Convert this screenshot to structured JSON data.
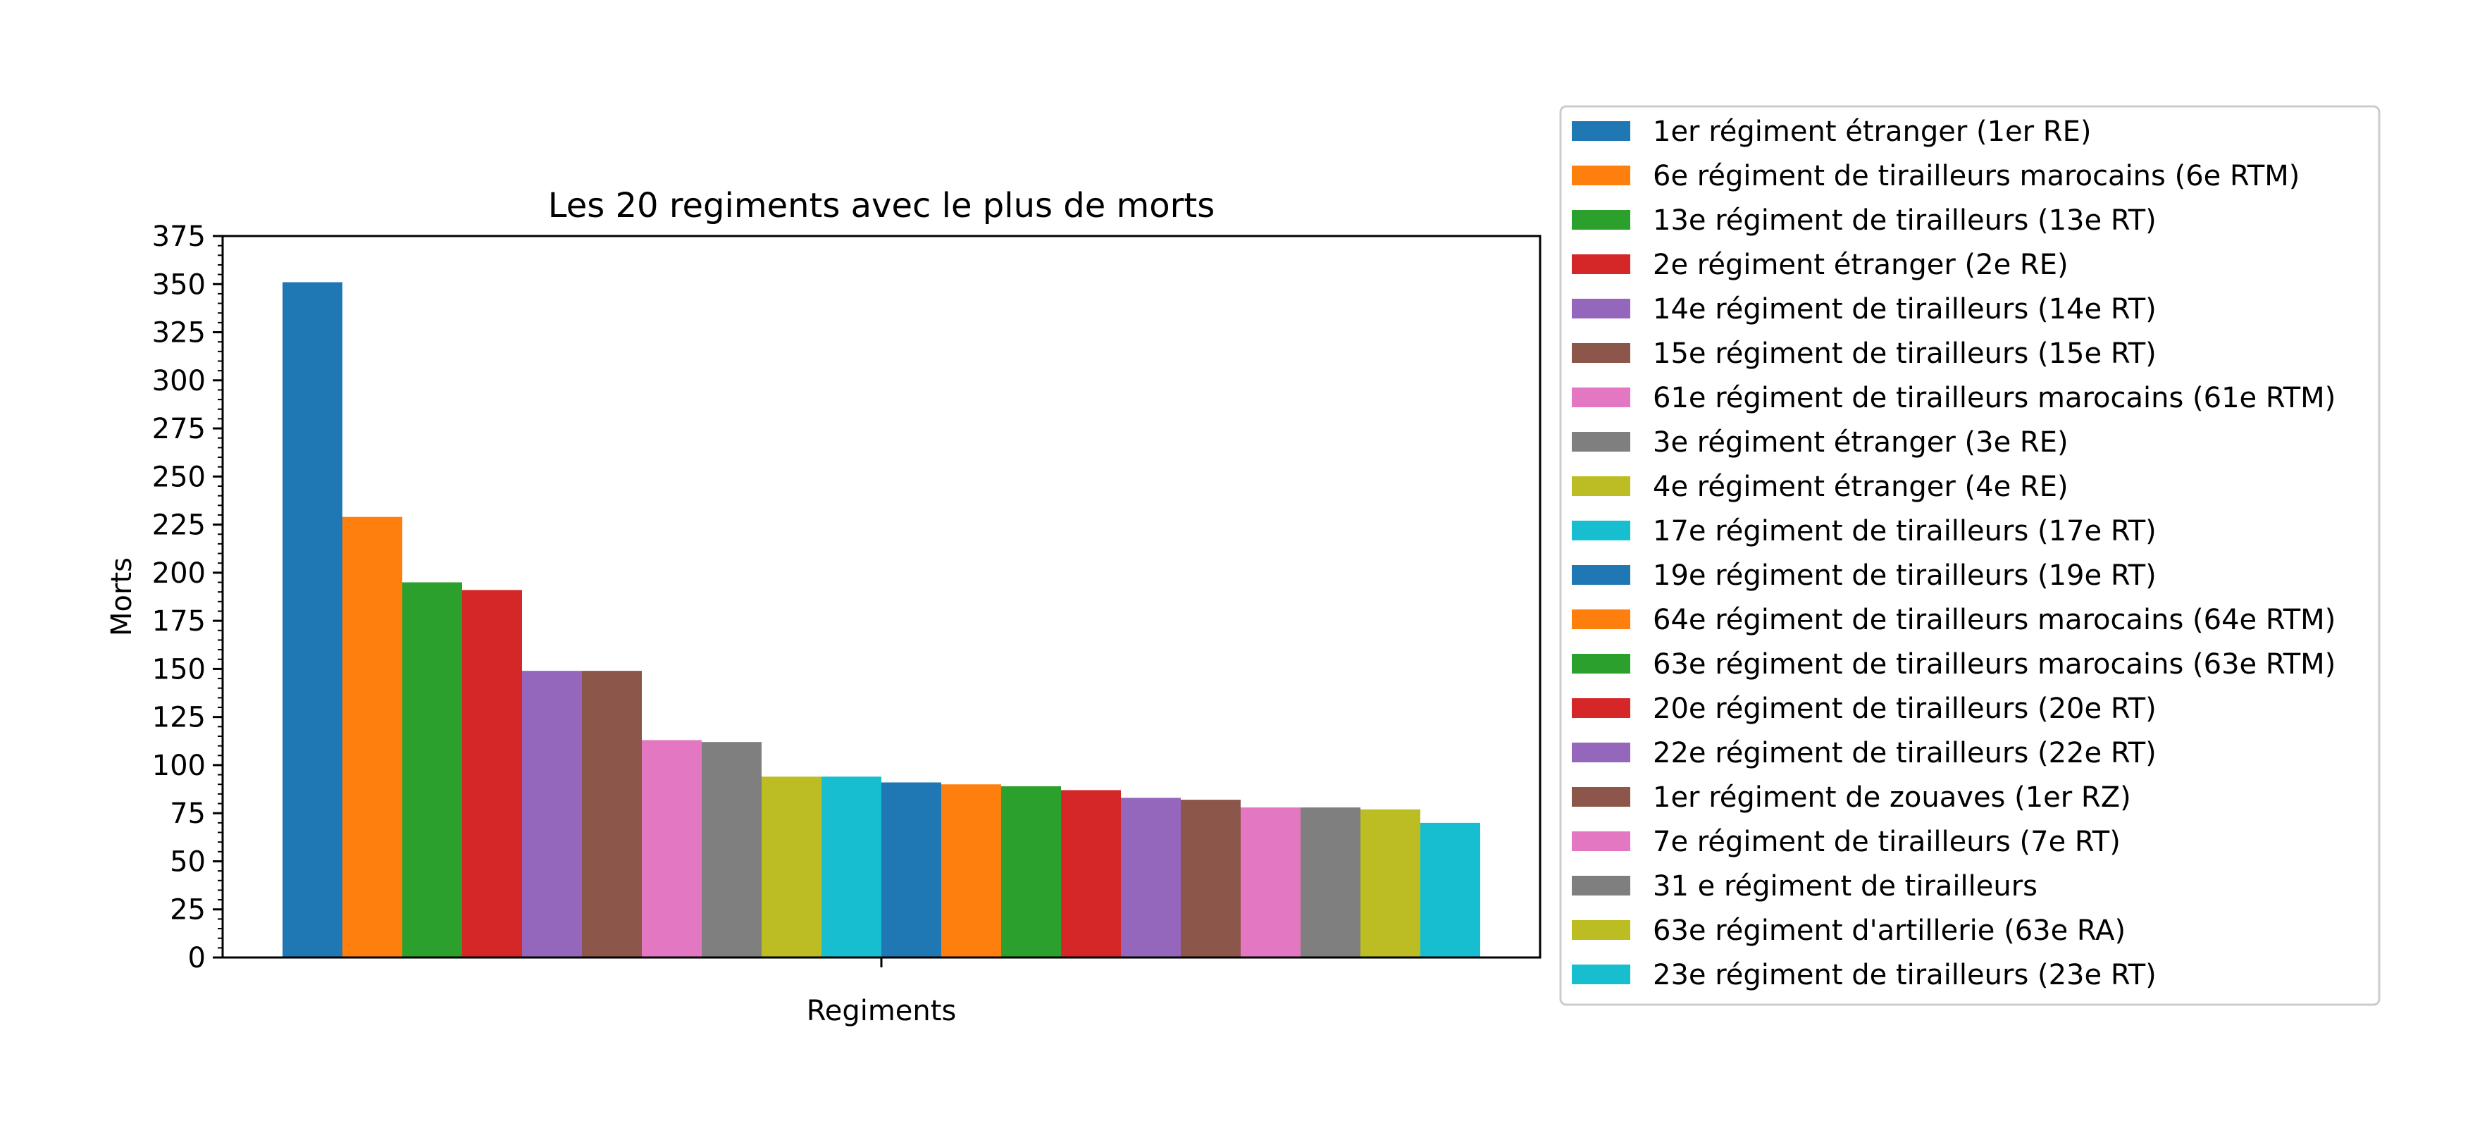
{
  "chart_data": {
    "type": "bar",
    "title": "Les 20 regiments avec le plus de morts",
    "xlabel": "Regiments",
    "ylabel": "Morts",
    "ylim": [
      0,
      375
    ],
    "yticks": [
      0,
      25,
      50,
      75,
      100,
      125,
      150,
      175,
      200,
      225,
      250,
      275,
      300,
      325,
      350,
      375
    ],
    "grid": false,
    "legend_position": "outside-right",
    "colors": [
      "#1f77b4",
      "#ff7f0e",
      "#2ca02c",
      "#d62728",
      "#9467bd",
      "#8c564b",
      "#e377c2",
      "#7f7f7f",
      "#bcbd22",
      "#17becf"
    ],
    "series": [
      {
        "name": "1er régiment étranger (1er RE)",
        "value": 351
      },
      {
        "name": "6e régiment de tirailleurs marocains (6e RTM)",
        "value": 229
      },
      {
        "name": "13e régiment de tirailleurs (13e RT)",
        "value": 195
      },
      {
        "name": "2e régiment étranger (2e RE)",
        "value": 191
      },
      {
        "name": "14e régiment de tirailleurs (14e RT)",
        "value": 149
      },
      {
        "name": "15e régiment de tirailleurs (15e RT)",
        "value": 149
      },
      {
        "name": "61e régiment de tirailleurs marocains (61e RTM)",
        "value": 113
      },
      {
        "name": "3e régiment étranger (3e RE)",
        "value": 112
      },
      {
        "name": "4e régiment étranger (4e RE)",
        "value": 94
      },
      {
        "name": "17e régiment de tirailleurs (17e RT)",
        "value": 94
      },
      {
        "name": "19e régiment de tirailleurs (19e RT)",
        "value": 91
      },
      {
        "name": "64e régiment de tirailleurs marocains (64e RTM)",
        "value": 90
      },
      {
        "name": "63e régiment de tirailleurs marocains (63e RTM)",
        "value": 89
      },
      {
        "name": "20e régiment de tirailleurs (20e RT)",
        "value": 87
      },
      {
        "name": "22e régiment de tirailleurs (22e RT)",
        "value": 83
      },
      {
        "name": "1er régiment de zouaves (1er RZ)",
        "value": 82
      },
      {
        "name": "7e régiment de tirailleurs (7e RT)",
        "value": 78
      },
      {
        "name": "31 e régiment de tirailleurs",
        "value": 78
      },
      {
        "name": "63e régiment d'artillerie (63e RA)",
        "value": 77
      },
      {
        "name": "23e régiment de tirailleurs (23e RT)",
        "value": 70
      }
    ]
  }
}
